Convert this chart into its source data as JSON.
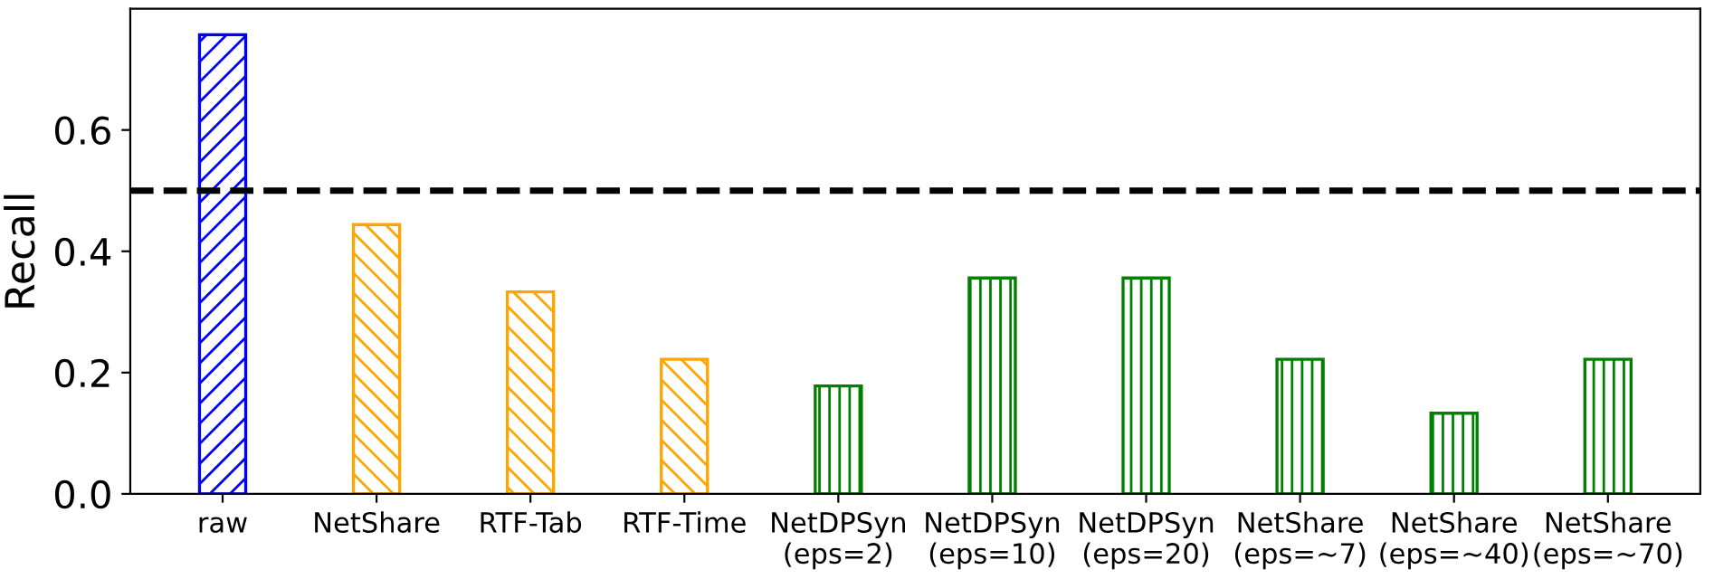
{
  "chart_data": {
    "type": "bar",
    "ylabel": "Recall",
    "categories": [
      "raw",
      "NetShare",
      "RTF-Tab",
      "RTF-Time",
      "NetDPSyn\n(eps=2)",
      "NetDPSyn\n(eps=10)",
      "NetDPSyn\n(eps=20)",
      "NetShare\n(eps=~7)",
      "NetShare\n(eps=~40)",
      "NetShare\n(eps=~70)"
    ],
    "values": [
      0.757,
      0.444,
      0.333,
      0.222,
      0.178,
      0.356,
      0.356,
      0.222,
      0.133,
      0.222
    ],
    "colors": [
      "#0000ff",
      "#ffa500",
      "#ffa500",
      "#ffa500",
      "#008000",
      "#008000",
      "#008000",
      "#008000",
      "#008000",
      "#008000"
    ],
    "ylim": [
      0,
      0.8
    ],
    "yticks": [
      {
        "value": 0.0,
        "label": "0.0"
      },
      {
        "value": 0.2,
        "label": "0.2"
      },
      {
        "value": 0.4,
        "label": "0.4"
      },
      {
        "value": 0.6,
        "label": "0.6"
      }
    ],
    "ref_lines": [
      {
        "axis": "y",
        "value": 0.5,
        "label": null,
        "color": "#000000",
        "line_style": "dashed"
      }
    ],
    "grid": false,
    "legend": false
  }
}
